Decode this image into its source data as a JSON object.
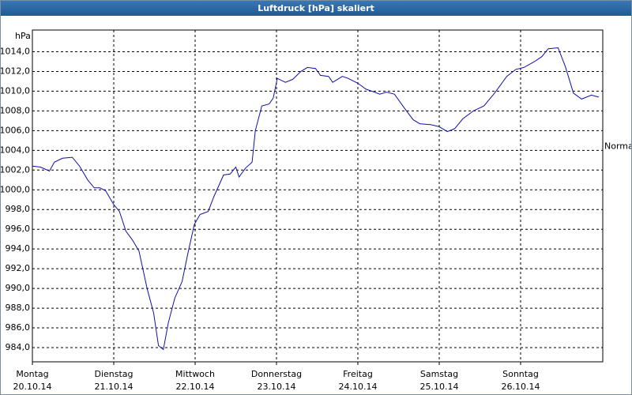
{
  "chart_data": {
    "type": "line",
    "title": "Luftdruck [hPa] skaliert",
    "y_unit": "hPa",
    "annotation": "Normal",
    "annotation_y": 1004.4,
    "xlim": [
      0,
      7.01
    ],
    "ylim": [
      982.56,
      1016.2
    ],
    "grid": true,
    "yticks": [
      {
        "value": 984,
        "label": "984,0"
      },
      {
        "value": 986,
        "label": "986,0"
      },
      {
        "value": 988,
        "label": "988,0"
      },
      {
        "value": 990,
        "label": "990,0"
      },
      {
        "value": 992,
        "label": "992,0"
      },
      {
        "value": 994,
        "label": "994,0"
      },
      {
        "value": 996,
        "label": "996,0"
      },
      {
        "value": 998,
        "label": "998,0"
      },
      {
        "value": 1000,
        "label": "1000,0"
      },
      {
        "value": 1002,
        "label": "1002,0"
      },
      {
        "value": 1004,
        "label": "1004,0"
      },
      {
        "value": 1006,
        "label": "1006,0"
      },
      {
        "value": 1008,
        "label": "1008,0"
      },
      {
        "value": 1010,
        "label": "1010,0"
      },
      {
        "value": 1012,
        "label": "1012,0"
      },
      {
        "value": 1014,
        "label": "1014,0"
      }
    ],
    "xticks": [
      {
        "value": 0,
        "label": "Montag",
        "date": "20.10.14"
      },
      {
        "value": 1,
        "label": "Dienstag",
        "date": "21.10.14"
      },
      {
        "value": 2,
        "label": "Mittwoch",
        "date": "22.10.14"
      },
      {
        "value": 3,
        "label": "Donnerstag",
        "date": "23.10.14"
      },
      {
        "value": 4,
        "label": "Freitag",
        "date": "24.10.14"
      },
      {
        "value": 5,
        "label": "Samstag",
        "date": "25.10.14"
      },
      {
        "value": 6,
        "label": "Sonntag",
        "date": "26.10.14"
      }
    ],
    "series": [
      {
        "name": "Luftdruck",
        "color": "#1010a8",
        "x": [
          0,
          0.1,
          0.21,
          0.27,
          0.37,
          0.49,
          0.58,
          0.68,
          0.76,
          0.83,
          0.9,
          1.0,
          1.07,
          1.15,
          1.23,
          1.31,
          1.41,
          1.49,
          1.55,
          1.61,
          1.67,
          1.75,
          1.84,
          1.91,
          1.99,
          2.06,
          2.16,
          2.23,
          2.35,
          2.43,
          2.5,
          2.54,
          2.62,
          2.7,
          2.74,
          2.82,
          2.91,
          2.96,
          3.01,
          3.11,
          3.2,
          3.3,
          3.38,
          3.48,
          3.54,
          3.64,
          3.69,
          3.81,
          3.88,
          4.0,
          4.1,
          4.17,
          4.27,
          4.35,
          4.45,
          4.58,
          4.68,
          4.76,
          4.9,
          5.0,
          5.1,
          5.19,
          5.29,
          5.42,
          5.55,
          5.68,
          5.83,
          5.94,
          6.04,
          6.17,
          6.26,
          6.34,
          6.46,
          6.55,
          6.65,
          6.75,
          6.87,
          6.96
        ],
        "values": [
          1002.4,
          1002.3,
          1001.9,
          1002.8,
          1003.2,
          1003.3,
          1002.4,
          1001.0,
          1000.2,
          1000.2,
          999.9,
          998.5,
          997.8,
          995.8,
          994.9,
          993.8,
          990.0,
          987.5,
          984.2,
          983.8,
          986.5,
          989.0,
          990.7,
          993.5,
          996.5,
          997.5,
          997.8,
          999.3,
          1001.5,
          1001.6,
          1002.3,
          1001.3,
          1002.2,
          1002.8,
          1006.0,
          1008.5,
          1008.7,
          1009.3,
          1011.3,
          1010.9,
          1011.2,
          1012.0,
          1012.4,
          1012.3,
          1011.6,
          1011.5,
          1010.9,
          1011.5,
          1011.3,
          1010.8,
          1010.2,
          1010.0,
          1009.7,
          1009.9,
          1009.7,
          1008.2,
          1007.1,
          1006.7,
          1006.6,
          1006.4,
          1005.9,
          1006.2,
          1007.2,
          1008.0,
          1008.5,
          1009.8,
          1011.5,
          1012.2,
          1012.4,
          1013.0,
          1013.5,
          1014.3,
          1014.4,
          1012.5,
          1009.8,
          1009.2,
          1009.6,
          1009.4
        ]
      }
    ]
  }
}
